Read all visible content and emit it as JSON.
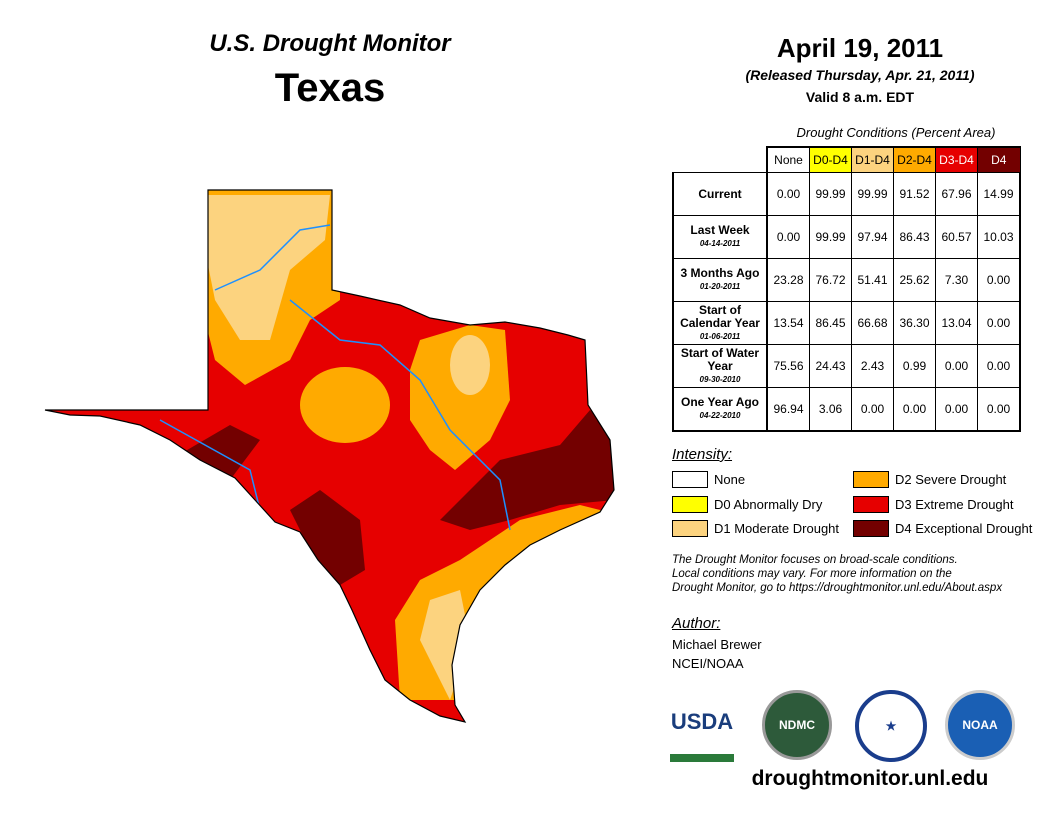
{
  "title": "U.S. Drought Monitor",
  "region": "Texas",
  "date": "April 19, 2011",
  "released": "(Released Thursday, Apr. 21, 2011)",
  "valid": "Valid 8 a.m. EDT",
  "table": {
    "caption": "Drought Conditions (Percent Area)",
    "headers": [
      "None",
      "D0-D4",
      "D1-D4",
      "D2-D4",
      "D3-D4",
      "D4"
    ],
    "header_colors": [
      "#ffffff",
      "#ffff00",
      "#fcd37f",
      "#ffaa00",
      "#e60000",
      "#730000"
    ],
    "rows": [
      {
        "label": "Current",
        "date": "",
        "values": [
          "0.00",
          "99.99",
          "99.99",
          "91.52",
          "67.96",
          "14.99"
        ]
      },
      {
        "label": "Last Week",
        "date": "04-14-2011",
        "values": [
          "0.00",
          "99.99",
          "97.94",
          "86.43",
          "60.57",
          "10.03"
        ]
      },
      {
        "label": "3 Months Ago",
        "date": "01-20-2011",
        "values": [
          "23.28",
          "76.72",
          "51.41",
          "25.62",
          "7.30",
          "0.00"
        ]
      },
      {
        "label": "Start of Calendar Year",
        "date": "01-06-2011",
        "values": [
          "13.54",
          "86.45",
          "66.68",
          "36.30",
          "13.04",
          "0.00"
        ]
      },
      {
        "label": "Start of Water Year",
        "date": "09-30-2010",
        "values": [
          "75.56",
          "24.43",
          "2.43",
          "0.99",
          "0.00",
          "0.00"
        ]
      },
      {
        "label": "One Year Ago",
        "date": "04-22-2010",
        "values": [
          "96.94",
          "3.06",
          "0.00",
          "0.00",
          "0.00",
          "0.00"
        ]
      }
    ]
  },
  "legend": {
    "title": "Intensity:",
    "items": [
      {
        "label": "None",
        "color": "#ffffff"
      },
      {
        "label": "D0 Abnormally Dry",
        "color": "#ffff00"
      },
      {
        "label": "D1 Moderate Drought",
        "color": "#fcd37f"
      },
      {
        "label": "D2 Severe Drought",
        "color": "#ffaa00"
      },
      {
        "label": "D3 Extreme Drought",
        "color": "#e60000"
      },
      {
        "label": "D4 Exceptional Drought",
        "color": "#730000"
      }
    ]
  },
  "note": [
    "The Drought Monitor focuses on broad-scale conditions.",
    "Local conditions may vary. For more information on the",
    "Drought Monitor, go to https://droughtmonitor.unl.edu/About.aspx"
  ],
  "author": {
    "heading": "Author:",
    "name": "Michael Brewer",
    "org": "NCEI/NOAA"
  },
  "logos": [
    "USDA",
    "NDMC",
    "NOAA"
  ],
  "url": "droughtmonitor.unl.edu"
}
